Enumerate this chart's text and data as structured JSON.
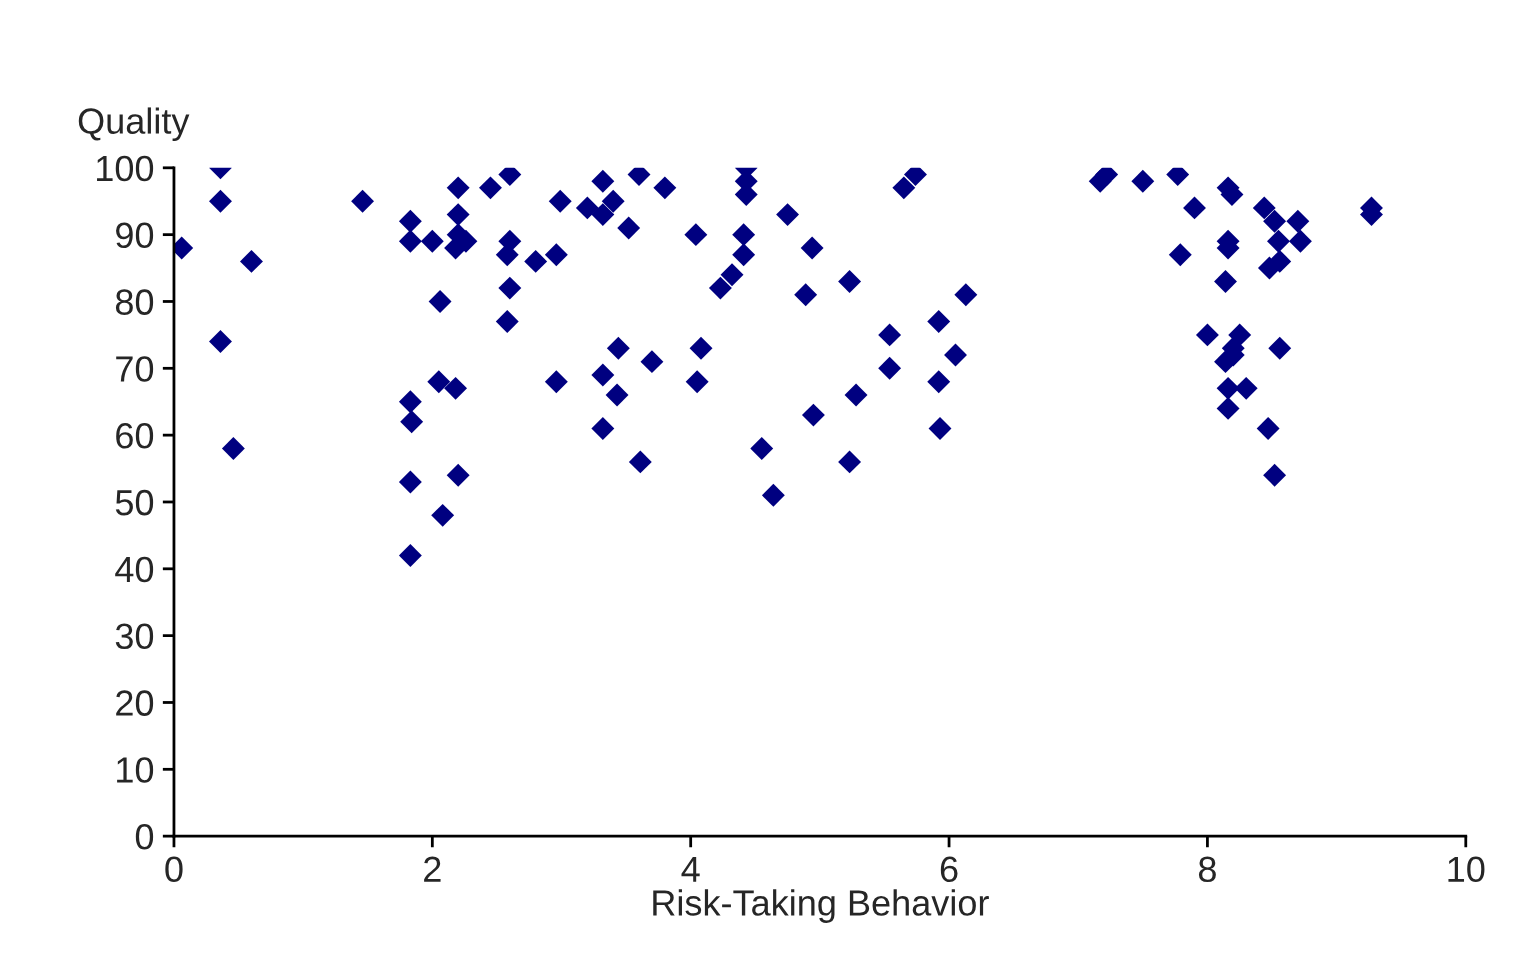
{
  "chart_data": {
    "type": "scatter",
    "xlabel": "Risk-Taking Behavior",
    "ylabel": "Quality",
    "marker": "diamond",
    "grid": false,
    "legend": false,
    "xlim": [
      0,
      10
    ],
    "xticks": [
      0,
      2,
      4,
      6,
      8,
      10
    ],
    "ylim": [
      0,
      100
    ],
    "yticks": [
      0,
      10,
      20,
      30,
      40,
      50,
      60,
      70,
      80,
      90,
      100
    ],
    "series": [
      {
        "color": "#000080",
        "x": [
          0.06,
          0.36,
          0.36,
          0.36,
          0.46,
          0.6,
          1.46,
          1.83,
          1.83,
          1.83,
          1.83,
          1.84,
          1.83,
          2.0,
          2.06,
          2.05,
          2.08,
          2.2,
          2.2,
          2.2,
          2.26,
          2.18,
          2.18,
          2.2,
          2.45,
          2.6,
          2.6,
          2.58,
          2.6,
          2.58,
          2.8,
          2.96,
          2.99,
          2.96,
          3.2,
          3.32,
          3.32,
          3.32,
          3.32,
          3.4,
          3.44,
          3.43,
          3.52,
          3.6,
          3.61,
          3.7,
          3.8,
          4.04,
          4.08,
          4.05,
          4.23,
          4.32,
          4.43,
          4.43,
          4.43,
          4.41,
          4.41,
          4.55,
          4.64,
          4.75,
          4.89,
          4.94,
          4.95,
          5.23,
          5.23,
          5.28,
          5.54,
          5.54,
          5.65,
          5.74,
          5.92,
          5.92,
          5.93,
          6.05,
          6.13,
          7.17,
          7.22,
          7.5,
          7.77,
          7.79,
          7.9,
          8.0,
          8.16,
          8.19,
          8.16,
          8.16,
          8.14,
          8.14,
          8.16,
          8.16,
          8.2,
          8.25,
          8.2,
          8.3,
          8.44,
          8.52,
          8.55,
          8.48,
          8.56,
          8.47,
          8.52,
          8.56,
          8.7,
          8.72,
          9.27,
          9.27
        ],
        "values": [
          88,
          100,
          95,
          74,
          58,
          86,
          95,
          92,
          89,
          53,
          65,
          62,
          42,
          89,
          80,
          68,
          48,
          97,
          93,
          90,
          89,
          88,
          67,
          54,
          97,
          99,
          89,
          87,
          82,
          77,
          86,
          87,
          95,
          68,
          94,
          98,
          93,
          69,
          61,
          95,
          73,
          66,
          91,
          99,
          56,
          71,
          97,
          90,
          73,
          68,
          82,
          84,
          100,
          98,
          96,
          90,
          87,
          58,
          51,
          93,
          81,
          88,
          63,
          83,
          56,
          66,
          75,
          70,
          97,
          99,
          77,
          68,
          61,
          72,
          81,
          98,
          99,
          98,
          99,
          87,
          94,
          75,
          97,
          96,
          89,
          88,
          83,
          71,
          67,
          64,
          73,
          75,
          72,
          67,
          94,
          92,
          89,
          85,
          86,
          61,
          54,
          73,
          92,
          89,
          94,
          93
        ]
      }
    ]
  }
}
